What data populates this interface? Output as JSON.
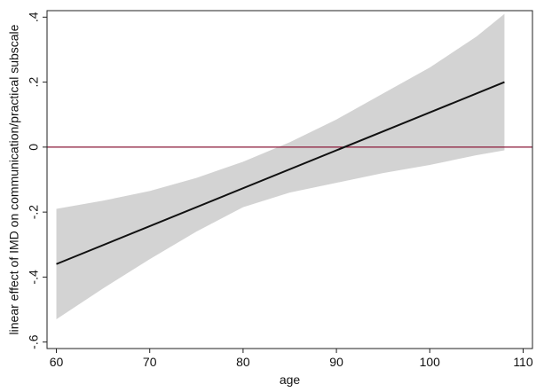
{
  "chart_data": {
    "type": "line",
    "title": "",
    "xlabel": "age",
    "ylabel": "linear effect of IMD on communication/practical subscale",
    "xlim": [
      59,
      111
    ],
    "ylim": [
      -0.62,
      0.42
    ],
    "xticks": [
      60,
      70,
      80,
      90,
      100,
      110
    ],
    "xtick_labels": [
      "60",
      "70",
      "80",
      "90",
      "100",
      "110"
    ],
    "yticks": [
      -0.6,
      -0.4,
      -0.2,
      0,
      0.2,
      0.4
    ],
    "ytick_labels": [
      "-.6",
      "-.4",
      "-.2",
      "0",
      ".2",
      ".4"
    ],
    "grid": false,
    "reference_line": {
      "y": 0,
      "color": "#8b1a3a"
    },
    "series": [
      {
        "kind": "line",
        "color": "#111111",
        "x": [
          60,
          108
        ],
        "y": [
          -0.36,
          0.2
        ]
      },
      {
        "kind": "confidence-band",
        "color": "#d3d3d3",
        "x": [
          60,
          65,
          70,
          75,
          80,
          85,
          90,
          95,
          100,
          105,
          108
        ],
        "lower": [
          -0.53,
          -0.435,
          -0.345,
          -0.26,
          -0.185,
          -0.14,
          -0.11,
          -0.08,
          -0.055,
          -0.025,
          -0.01
        ],
        "upper": [
          -0.19,
          -0.165,
          -0.135,
          -0.095,
          -0.045,
          0.015,
          0.085,
          0.165,
          0.245,
          0.34,
          0.41
        ]
      }
    ]
  }
}
